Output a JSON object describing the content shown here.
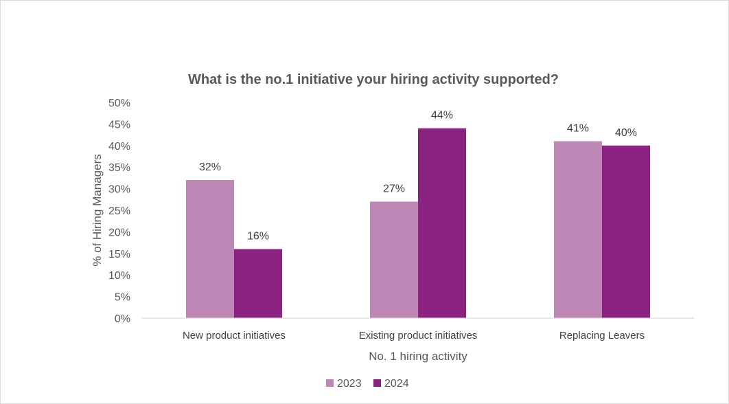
{
  "chart_data": {
    "type": "bar",
    "title": "What is the no.1 initiative your hiring activity supported?",
    "xlabel": "No. 1 hiring activity",
    "ylabel": "% of Hiring Managers",
    "categories": [
      "New product initiatives",
      "Existing product initiatives",
      "Replacing Leavers"
    ],
    "series": [
      {
        "name": "2023",
        "values": [
          32,
          27,
          41
        ],
        "labels": [
          "32%",
          "27%",
          "41%"
        ],
        "color": "#bd88b6"
      },
      {
        "name": "2024",
        "values": [
          16,
          44,
          40
        ],
        "labels": [
          "16%",
          "44%",
          "40%"
        ],
        "color": "#8b2380"
      }
    ],
    "y_ticks": [
      "0%",
      "5%",
      "10%",
      "15%",
      "20%",
      "25%",
      "30%",
      "35%",
      "40%",
      "45%",
      "50%"
    ],
    "ylim": [
      0,
      50
    ],
    "grid": false,
    "legend_position": "bottom"
  }
}
